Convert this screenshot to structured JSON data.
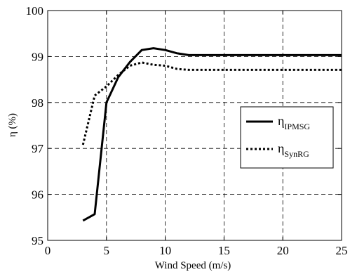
{
  "chart_data": {
    "type": "line",
    "xlabel": "Wind Speed (m/s)",
    "ylabel": "η  (%)",
    "xlim": [
      0,
      25
    ],
    "ylim": [
      95,
      100
    ],
    "xticks": [
      0,
      5,
      10,
      15,
      20,
      25
    ],
    "yticks": [
      95,
      96,
      97,
      98,
      99,
      100
    ],
    "grid": true,
    "grid_style": "dashed",
    "legend_position": "right",
    "series": [
      {
        "name_main": "η",
        "name_sub": "IPMSG",
        "style": "solid",
        "color": "#000000",
        "x": [
          3,
          4,
          5,
          6,
          7,
          8,
          9,
          10,
          11,
          12,
          13,
          14,
          15,
          16,
          17,
          18,
          19,
          20,
          21,
          22,
          23,
          24,
          25
        ],
        "y": [
          95.43,
          95.57,
          98.0,
          98.55,
          98.88,
          99.14,
          99.18,
          99.14,
          99.07,
          99.03,
          99.03,
          99.03,
          99.03,
          99.03,
          99.03,
          99.03,
          99.03,
          99.03,
          99.03,
          99.03,
          99.03,
          99.03,
          99.03
        ]
      },
      {
        "name_main": "η",
        "name_sub": "SynRG",
        "style": "dotted",
        "color": "#000000",
        "x": [
          3,
          4,
          5,
          6,
          7,
          8,
          9,
          10,
          11,
          12,
          13,
          14,
          15,
          16,
          17,
          18,
          19,
          20,
          21,
          22,
          23,
          24,
          25
        ],
        "y": [
          97.08,
          98.15,
          98.35,
          98.6,
          98.8,
          98.87,
          98.82,
          98.8,
          98.73,
          98.71,
          98.71,
          98.71,
          98.71,
          98.71,
          98.71,
          98.71,
          98.71,
          98.71,
          98.71,
          98.71,
          98.71,
          98.71,
          98.71
        ]
      }
    ]
  }
}
